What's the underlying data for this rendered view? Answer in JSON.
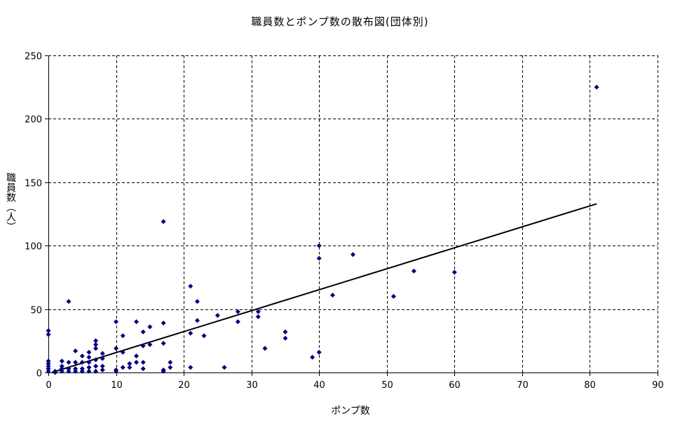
{
  "chart_data": {
    "type": "scatter",
    "title": "職員数とポンプ数の散布図(団体別)",
    "xlabel": "ポンプ数",
    "ylabel": "職員数（人）",
    "xlim": [
      0,
      90
    ],
    "ylim": [
      0,
      250
    ],
    "xticks": [
      0,
      10,
      20,
      30,
      40,
      50,
      60,
      70,
      80,
      90
    ],
    "yticks": [
      0,
      50,
      100,
      150,
      200,
      250
    ],
    "grid": true,
    "legend": "none",
    "marker_color": "#000080",
    "trendline_color": "#000000",
    "points": [
      [
        0,
        33
      ],
      [
        0,
        30
      ],
      [
        0,
        9
      ],
      [
        0,
        7
      ],
      [
        0,
        5
      ],
      [
        0,
        3
      ],
      [
        0,
        1
      ],
      [
        1,
        1
      ],
      [
        1,
        0
      ],
      [
        2,
        9
      ],
      [
        2,
        5
      ],
      [
        2,
        3
      ],
      [
        2,
        1
      ],
      [
        3,
        56
      ],
      [
        3,
        8
      ],
      [
        3,
        3
      ],
      [
        3,
        1
      ],
      [
        4,
        17
      ],
      [
        4,
        8
      ],
      [
        4,
        3
      ],
      [
        4,
        1
      ],
      [
        5,
        13
      ],
      [
        5,
        8
      ],
      [
        5,
        3
      ],
      [
        5,
        1
      ],
      [
        6,
        16
      ],
      [
        6,
        12
      ],
      [
        6,
        8
      ],
      [
        6,
        4
      ],
      [
        6,
        1
      ],
      [
        7,
        25
      ],
      [
        7,
        22
      ],
      [
        7,
        19
      ],
      [
        7,
        10
      ],
      [
        7,
        5
      ],
      [
        7,
        1
      ],
      [
        8,
        15
      ],
      [
        8,
        11
      ],
      [
        8,
        5
      ],
      [
        8,
        2
      ],
      [
        10,
        40
      ],
      [
        10,
        19
      ],
      [
        10,
        2
      ],
      [
        10,
        1
      ],
      [
        11,
        29
      ],
      [
        11,
        16
      ],
      [
        11,
        4
      ],
      [
        12,
        7
      ],
      [
        12,
        4
      ],
      [
        13,
        40
      ],
      [
        13,
        13
      ],
      [
        13,
        8
      ],
      [
        14,
        32
      ],
      [
        14,
        21
      ],
      [
        14,
        8
      ],
      [
        14,
        3
      ],
      [
        15,
        36
      ],
      [
        15,
        22
      ],
      [
        17,
        119
      ],
      [
        17,
        39
      ],
      [
        17,
        23
      ],
      [
        17,
        2
      ],
      [
        17,
        1
      ],
      [
        18,
        8
      ],
      [
        18,
        4
      ],
      [
        21,
        68
      ],
      [
        21,
        31
      ],
      [
        21,
        4
      ],
      [
        22,
        56
      ],
      [
        22,
        41
      ],
      [
        23,
        29
      ],
      [
        25,
        45
      ],
      [
        26,
        4
      ],
      [
        28,
        48
      ],
      [
        28,
        40
      ],
      [
        31,
        48
      ],
      [
        31,
        44
      ],
      [
        32,
        19
      ],
      [
        35,
        32
      ],
      [
        35,
        27
      ],
      [
        39,
        12
      ],
      [
        40,
        100
      ],
      [
        40,
        90
      ],
      [
        40,
        16
      ],
      [
        42,
        61
      ],
      [
        45,
        93
      ],
      [
        51,
        60
      ],
      [
        54,
        80
      ],
      [
        60,
        79
      ],
      [
        81,
        225
      ]
    ],
    "trendline": {
      "x": [
        0.5,
        81
      ],
      "y": [
        0,
        133
      ]
    }
  }
}
